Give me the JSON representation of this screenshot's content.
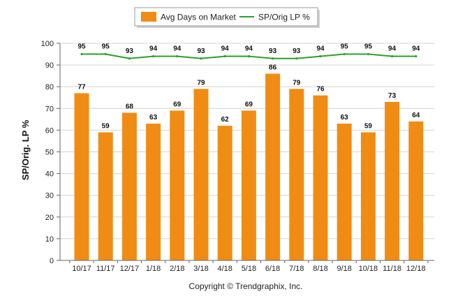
{
  "chart_data": {
    "type": "bar",
    "categories": [
      "10/17",
      "11/17",
      "12/17",
      "1/18",
      "2/18",
      "3/18",
      "4/18",
      "5/18",
      "6/18",
      "7/18",
      "8/18",
      "9/18",
      "10/18",
      "11/18",
      "12/18"
    ],
    "series": [
      {
        "name": "Avg Days on Market",
        "type": "bar",
        "color": "#f08c14",
        "values": [
          77,
          59,
          68,
          63,
          69,
          79,
          62,
          69,
          86,
          79,
          76,
          63,
          59,
          73,
          64
        ]
      },
      {
        "name": "SP/Orig LP %",
        "type": "line",
        "color": "#2ba02b",
        "values": [
          95,
          95,
          93,
          94,
          94,
          93,
          94,
          94,
          93,
          93,
          94,
          95,
          95,
          94,
          94
        ]
      }
    ],
    "ylabel": "SP/Orig. LP %",
    "xlabel": "",
    "ylim": [
      0,
      100
    ],
    "yticks": [
      0,
      10,
      20,
      30,
      40,
      50,
      60,
      70,
      80,
      90,
      100
    ],
    "grid": true,
    "legend_position": "top-center"
  },
  "footer": {
    "copyright": "Copyright © Trendgraphix, Inc."
  }
}
